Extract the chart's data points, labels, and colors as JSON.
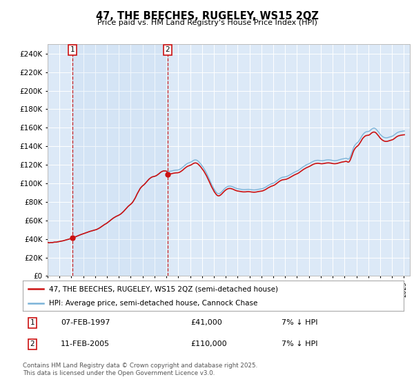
{
  "title": "47, THE BEECHES, RUGELEY, WS15 2QZ",
  "subtitle": "Price paid vs. HM Land Registry's House Price Index (HPI)",
  "ylim": [
    0,
    250000
  ],
  "yticks": [
    0,
    20000,
    40000,
    60000,
    80000,
    100000,
    120000,
    140000,
    160000,
    180000,
    200000,
    220000,
    240000
  ],
  "xlim_start": 1995.0,
  "xlim_end": 2025.5,
  "plot_bg": "#dce9f7",
  "hpi_color": "#7ab3d8",
  "price_color": "#cc1111",
  "legend_hpi": "HPI: Average price, semi-detached house, Cannock Chase",
  "legend_price": "47, THE BEECHES, RUGELEY, WS15 2QZ (semi-detached house)",
  "sale1_date": "07-FEB-1997",
  "sale1_price": 41000,
  "sale1_x": 1997.1,
  "sale2_date": "11-FEB-2005",
  "sale2_price": 110000,
  "sale2_x": 2005.1,
  "footnote": "Contains HM Land Registry data © Crown copyright and database right 2025.\nThis data is licensed under the Open Government Licence v3.0.",
  "xticks": [
    1995,
    1996,
    1997,
    1998,
    1999,
    2000,
    2001,
    2002,
    2003,
    2004,
    2005,
    2006,
    2007,
    2008,
    2009,
    2010,
    2011,
    2012,
    2013,
    2014,
    2015,
    2016,
    2017,
    2018,
    2019,
    2020,
    2021,
    2022,
    2023,
    2024,
    2025
  ],
  "hpi_index": [
    [
      1995.04,
      57.2
    ],
    [
      1995.13,
      56.8
    ],
    [
      1995.21,
      57.0
    ],
    [
      1995.29,
      57.3
    ],
    [
      1995.38,
      57.1
    ],
    [
      1995.46,
      57.5
    ],
    [
      1995.54,
      57.8
    ],
    [
      1995.63,
      58.0
    ],
    [
      1995.71,
      57.9
    ],
    [
      1995.79,
      58.2
    ],
    [
      1995.88,
      58.5
    ],
    [
      1995.96,
      58.8
    ],
    [
      1996.04,
      59.1
    ],
    [
      1996.13,
      59.4
    ],
    [
      1996.21,
      59.8
    ],
    [
      1996.29,
      60.2
    ],
    [
      1996.38,
      60.7
    ],
    [
      1996.46,
      61.1
    ],
    [
      1996.54,
      61.5
    ],
    [
      1996.63,
      62.0
    ],
    [
      1996.71,
      62.5
    ],
    [
      1996.79,
      63.0
    ],
    [
      1996.88,
      63.5
    ],
    [
      1996.96,
      64.0
    ],
    [
      1997.04,
      64.6
    ],
    [
      1997.13,
      65.2
    ],
    [
      1997.21,
      65.9
    ],
    [
      1997.29,
      66.6
    ],
    [
      1997.38,
      67.3
    ],
    [
      1997.46,
      68.0
    ],
    [
      1997.54,
      68.7
    ],
    [
      1997.63,
      69.4
    ],
    [
      1997.71,
      70.1
    ],
    [
      1997.79,
      70.8
    ],
    [
      1997.88,
      71.4
    ],
    [
      1997.96,
      72.0
    ],
    [
      1998.04,
      72.6
    ],
    [
      1998.13,
      73.2
    ],
    [
      1998.21,
      73.8
    ],
    [
      1998.29,
      74.4
    ],
    [
      1998.38,
      75.0
    ],
    [
      1998.46,
      75.6
    ],
    [
      1998.54,
      76.2
    ],
    [
      1998.63,
      76.7
    ],
    [
      1998.71,
      77.2
    ],
    [
      1998.79,
      77.7
    ],
    [
      1998.88,
      78.1
    ],
    [
      1998.96,
      78.5
    ],
    [
      1999.04,
      79.0
    ],
    [
      1999.13,
      79.6
    ],
    [
      1999.21,
      80.4
    ],
    [
      1999.29,
      81.3
    ],
    [
      1999.38,
      82.3
    ],
    [
      1999.46,
      83.4
    ],
    [
      1999.54,
      84.6
    ],
    [
      1999.63,
      85.8
    ],
    [
      1999.71,
      87.0
    ],
    [
      1999.79,
      88.1
    ],
    [
      1999.88,
      89.1
    ],
    [
      1999.96,
      90.0
    ],
    [
      2000.04,
      91.2
    ],
    [
      2000.13,
      92.5
    ],
    [
      2000.21,
      93.9
    ],
    [
      2000.29,
      95.3
    ],
    [
      2000.38,
      96.7
    ],
    [
      2000.46,
      98.0
    ],
    [
      2000.54,
      99.2
    ],
    [
      2000.63,
      100.3
    ],
    [
      2000.71,
      101.3
    ],
    [
      2000.79,
      102.2
    ],
    [
      2000.88,
      103.0
    ],
    [
      2000.96,
      103.7
    ],
    [
      2001.04,
      104.6
    ],
    [
      2001.13,
      105.7
    ],
    [
      2001.21,
      107.0
    ],
    [
      2001.29,
      108.5
    ],
    [
      2001.38,
      110.2
    ],
    [
      2001.46,
      112.0
    ],
    [
      2001.54,
      113.9
    ],
    [
      2001.63,
      115.8
    ],
    [
      2001.71,
      117.6
    ],
    [
      2001.79,
      119.3
    ],
    [
      2001.88,
      120.8
    ],
    [
      2001.96,
      122.1
    ],
    [
      2002.04,
      123.6
    ],
    [
      2002.13,
      125.5
    ],
    [
      2002.21,
      127.8
    ],
    [
      2002.29,
      130.5
    ],
    [
      2002.38,
      133.6
    ],
    [
      2002.46,
      137.0
    ],
    [
      2002.54,
      140.5
    ],
    [
      2002.63,
      143.9
    ],
    [
      2002.71,
      147.0
    ],
    [
      2002.79,
      149.7
    ],
    [
      2002.88,
      151.9
    ],
    [
      2002.96,
      153.6
    ],
    [
      2003.04,
      155.0
    ],
    [
      2003.13,
      156.5
    ],
    [
      2003.21,
      158.2
    ],
    [
      2003.29,
      160.1
    ],
    [
      2003.38,
      162.1
    ],
    [
      2003.46,
      164.0
    ],
    [
      2003.54,
      165.8
    ],
    [
      2003.63,
      167.3
    ],
    [
      2003.71,
      168.5
    ],
    [
      2003.79,
      169.4
    ],
    [
      2003.88,
      170.0
    ],
    [
      2003.96,
      170.3
    ],
    [
      2004.04,
      170.8
    ],
    [
      2004.13,
      171.5
    ],
    [
      2004.21,
      172.5
    ],
    [
      2004.29,
      173.7
    ],
    [
      2004.38,
      175.1
    ],
    [
      2004.46,
      176.5
    ],
    [
      2004.54,
      177.8
    ],
    [
      2004.63,
      178.8
    ],
    [
      2004.71,
      179.5
    ],
    [
      2004.79,
      179.8
    ],
    [
      2004.88,
      179.8
    ],
    [
      2004.96,
      179.5
    ],
    [
      2005.04,
      179.2
    ],
    [
      2005.13,
      179.0
    ],
    [
      2005.21,
      179.0
    ],
    [
      2005.29,
      179.2
    ],
    [
      2005.38,
      179.5
    ],
    [
      2005.46,
      179.9
    ],
    [
      2005.54,
      180.3
    ],
    [
      2005.63,
      180.7
    ],
    [
      2005.71,
      181.0
    ],
    [
      2005.79,
      181.2
    ],
    [
      2005.88,
      181.3
    ],
    [
      2005.96,
      181.4
    ],
    [
      2006.04,
      181.8
    ],
    [
      2006.13,
      182.5
    ],
    [
      2006.21,
      183.5
    ],
    [
      2006.29,
      184.7
    ],
    [
      2006.38,
      186.1
    ],
    [
      2006.46,
      187.6
    ],
    [
      2006.54,
      189.1
    ],
    [
      2006.63,
      190.5
    ],
    [
      2006.71,
      191.8
    ],
    [
      2006.79,
      192.8
    ],
    [
      2006.88,
      193.5
    ],
    [
      2006.96,
      194.0
    ],
    [
      2007.04,
      194.8
    ],
    [
      2007.13,
      195.8
    ],
    [
      2007.21,
      196.9
    ],
    [
      2007.29,
      197.9
    ],
    [
      2007.38,
      198.5
    ],
    [
      2007.46,
      198.7
    ],
    [
      2007.54,
      198.3
    ],
    [
      2007.63,
      197.3
    ],
    [
      2007.71,
      195.8
    ],
    [
      2007.79,
      194.0
    ],
    [
      2007.88,
      192.0
    ],
    [
      2007.96,
      189.8
    ],
    [
      2008.04,
      187.5
    ],
    [
      2008.13,
      185.0
    ],
    [
      2008.21,
      182.3
    ],
    [
      2008.29,
      179.3
    ],
    [
      2008.38,
      176.0
    ],
    [
      2008.46,
      172.5
    ],
    [
      2008.54,
      168.8
    ],
    [
      2008.63,
      165.0
    ],
    [
      2008.71,
      161.2
    ],
    [
      2008.79,
      157.5
    ],
    [
      2008.88,
      154.0
    ],
    [
      2008.96,
      150.8
    ],
    [
      2009.04,
      147.8
    ],
    [
      2009.13,
      145.2
    ],
    [
      2009.21,
      143.0
    ],
    [
      2009.29,
      141.5
    ],
    [
      2009.38,
      140.8
    ],
    [
      2009.46,
      141.0
    ],
    [
      2009.54,
      142.0
    ],
    [
      2009.63,
      143.5
    ],
    [
      2009.71,
      145.3
    ],
    [
      2009.79,
      147.2
    ],
    [
      2009.88,
      149.0
    ],
    [
      2009.96,
      150.5
    ],
    [
      2010.04,
      151.8
    ],
    [
      2010.13,
      152.8
    ],
    [
      2010.21,
      153.5
    ],
    [
      2010.29,
      153.8
    ],
    [
      2010.38,
      153.8
    ],
    [
      2010.46,
      153.5
    ],
    [
      2010.54,
      153.0
    ],
    [
      2010.63,
      152.3
    ],
    [
      2010.71,
      151.5
    ],
    [
      2010.79,
      150.7
    ],
    [
      2010.88,
      150.0
    ],
    [
      2010.96,
      149.5
    ],
    [
      2011.04,
      149.2
    ],
    [
      2011.13,
      148.8
    ],
    [
      2011.21,
      148.5
    ],
    [
      2011.29,
      148.2
    ],
    [
      2011.38,
      148.0
    ],
    [
      2011.46,
      147.8
    ],
    [
      2011.54,
      147.8
    ],
    [
      2011.63,
      147.8
    ],
    [
      2011.71,
      148.0
    ],
    [
      2011.79,
      148.2
    ],
    [
      2011.88,
      148.3
    ],
    [
      2011.96,
      148.2
    ],
    [
      2012.04,
      148.0
    ],
    [
      2012.13,
      147.8
    ],
    [
      2012.21,
      147.5
    ],
    [
      2012.29,
      147.3
    ],
    [
      2012.38,
      147.2
    ],
    [
      2012.46,
      147.3
    ],
    [
      2012.54,
      147.5
    ],
    [
      2012.63,
      147.8
    ],
    [
      2012.71,
      148.2
    ],
    [
      2012.79,
      148.5
    ],
    [
      2012.88,
      148.8
    ],
    [
      2012.96,
      149.0
    ],
    [
      2013.04,
      149.3
    ],
    [
      2013.13,
      149.8
    ],
    [
      2013.21,
      150.5
    ],
    [
      2013.29,
      151.3
    ],
    [
      2013.38,
      152.3
    ],
    [
      2013.46,
      153.4
    ],
    [
      2013.54,
      154.5
    ],
    [
      2013.63,
      155.5
    ],
    [
      2013.71,
      156.5
    ],
    [
      2013.79,
      157.3
    ],
    [
      2013.88,
      158.0
    ],
    [
      2013.96,
      158.5
    ],
    [
      2014.04,
      159.2
    ],
    [
      2014.13,
      160.2
    ],
    [
      2014.21,
      161.5
    ],
    [
      2014.29,
      162.8
    ],
    [
      2014.38,
      164.2
    ],
    [
      2014.46,
      165.5
    ],
    [
      2014.54,
      166.7
    ],
    [
      2014.63,
      167.7
    ],
    [
      2014.71,
      168.5
    ],
    [
      2014.79,
      169.0
    ],
    [
      2014.88,
      169.3
    ],
    [
      2014.96,
      169.5
    ],
    [
      2015.04,
      169.8
    ],
    [
      2015.13,
      170.3
    ],
    [
      2015.21,
      171.0
    ],
    [
      2015.29,
      171.8
    ],
    [
      2015.38,
      172.8
    ],
    [
      2015.46,
      173.8
    ],
    [
      2015.54,
      174.8
    ],
    [
      2015.63,
      175.8
    ],
    [
      2015.71,
      176.8
    ],
    [
      2015.79,
      177.7
    ],
    [
      2015.88,
      178.5
    ],
    [
      2015.96,
      179.2
    ],
    [
      2016.04,
      180.0
    ],
    [
      2016.13,
      181.0
    ],
    [
      2016.21,
      182.2
    ],
    [
      2016.29,
      183.5
    ],
    [
      2016.38,
      184.8
    ],
    [
      2016.46,
      186.0
    ],
    [
      2016.54,
      187.2
    ],
    [
      2016.63,
      188.3
    ],
    [
      2016.71,
      189.3
    ],
    [
      2016.79,
      190.2
    ],
    [
      2016.88,
      191.0
    ],
    [
      2016.96,
      191.7
    ],
    [
      2017.04,
      192.5
    ],
    [
      2017.13,
      193.5
    ],
    [
      2017.21,
      194.5
    ],
    [
      2017.29,
      195.5
    ],
    [
      2017.38,
      196.3
    ],
    [
      2017.46,
      197.0
    ],
    [
      2017.54,
      197.5
    ],
    [
      2017.63,
      197.8
    ],
    [
      2017.71,
      198.0
    ],
    [
      2017.79,
      198.0
    ],
    [
      2017.88,
      197.8
    ],
    [
      2017.96,
      197.5
    ],
    [
      2018.04,
      197.3
    ],
    [
      2018.13,
      197.3
    ],
    [
      2018.21,
      197.5
    ],
    [
      2018.29,
      197.8
    ],
    [
      2018.38,
      198.2
    ],
    [
      2018.46,
      198.5
    ],
    [
      2018.54,
      198.7
    ],
    [
      2018.63,
      198.8
    ],
    [
      2018.71,
      198.7
    ],
    [
      2018.79,
      198.5
    ],
    [
      2018.88,
      198.2
    ],
    [
      2018.96,
      197.8
    ],
    [
      2019.04,
      197.5
    ],
    [
      2019.13,
      197.3
    ],
    [
      2019.21,
      197.3
    ],
    [
      2019.29,
      197.5
    ],
    [
      2019.38,
      197.8
    ],
    [
      2019.46,
      198.3
    ],
    [
      2019.54,
      198.8
    ],
    [
      2019.63,
      199.3
    ],
    [
      2019.71,
      199.8
    ],
    [
      2019.79,
      200.2
    ],
    [
      2019.88,
      200.5
    ],
    [
      2019.96,
      200.8
    ],
    [
      2020.04,
      201.2
    ],
    [
      2020.13,
      201.5
    ],
    [
      2020.21,
      201.0
    ],
    [
      2020.29,
      200.0
    ],
    [
      2020.38,
      200.5
    ],
    [
      2020.46,
      203.0
    ],
    [
      2020.54,
      207.0
    ],
    [
      2020.63,
      212.0
    ],
    [
      2020.71,
      217.0
    ],
    [
      2020.79,
      221.0
    ],
    [
      2020.88,
      224.0
    ],
    [
      2020.96,
      226.0
    ],
    [
      2021.04,
      227.5
    ],
    [
      2021.13,
      229.0
    ],
    [
      2021.21,
      231.0
    ],
    [
      2021.29,
      233.5
    ],
    [
      2021.38,
      236.5
    ],
    [
      2021.46,
      239.5
    ],
    [
      2021.54,
      242.0
    ],
    [
      2021.63,
      244.0
    ],
    [
      2021.71,
      245.5
    ],
    [
      2021.79,
      246.5
    ],
    [
      2021.88,
      247.0
    ],
    [
      2021.96,
      247.2
    ],
    [
      2022.04,
      247.5
    ],
    [
      2022.13,
      248.5
    ],
    [
      2022.21,
      250.0
    ],
    [
      2022.29,
      251.5
    ],
    [
      2022.38,
      252.5
    ],
    [
      2022.46,
      253.0
    ],
    [
      2022.54,
      252.8
    ],
    [
      2022.63,
      251.8
    ],
    [
      2022.71,
      250.0
    ],
    [
      2022.79,
      248.0
    ],
    [
      2022.88,
      245.8
    ],
    [
      2022.96,
      243.5
    ],
    [
      2023.04,
      241.5
    ],
    [
      2023.13,
      239.8
    ],
    [
      2023.21,
      238.5
    ],
    [
      2023.29,
      237.5
    ],
    [
      2023.38,
      236.8
    ],
    [
      2023.46,
      236.5
    ],
    [
      2023.54,
      236.5
    ],
    [
      2023.63,
      236.8
    ],
    [
      2023.71,
      237.3
    ],
    [
      2023.79,
      237.8
    ],
    [
      2023.88,
      238.3
    ],
    [
      2023.96,
      238.8
    ],
    [
      2024.04,
      239.5
    ],
    [
      2024.13,
      240.5
    ],
    [
      2024.21,
      241.8
    ],
    [
      2024.29,
      243.2
    ],
    [
      2024.38,
      244.5
    ],
    [
      2024.46,
      245.5
    ],
    [
      2024.54,
      246.2
    ],
    [
      2024.63,
      246.8
    ],
    [
      2024.71,
      247.2
    ],
    [
      2024.79,
      247.5
    ],
    [
      2024.88,
      247.8
    ],
    [
      2024.96,
      248.0
    ],
    [
      2025.04,
      248.2
    ]
  ]
}
